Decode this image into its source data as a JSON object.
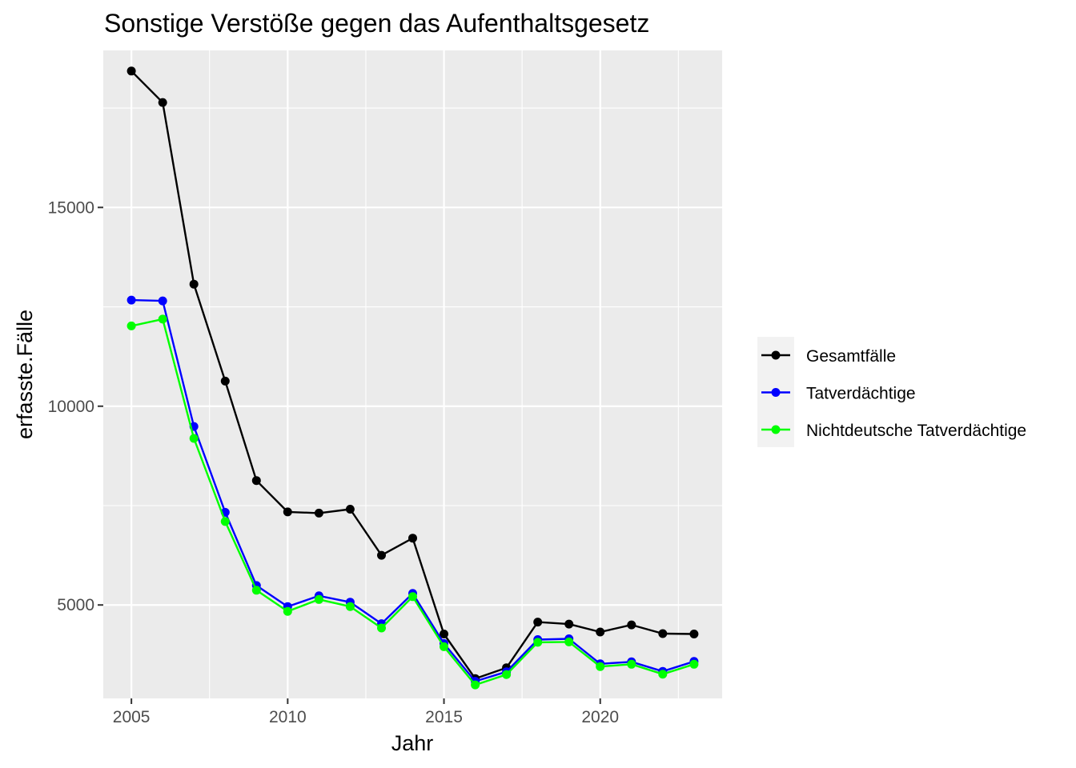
{
  "chart_data": {
    "type": "line",
    "title": "Sonstige Verstöße gegen das Aufenthaltsgesetz",
    "xlabel": "Jahr",
    "ylabel": "erfasste.Fälle",
    "x": [
      2005,
      2006,
      2007,
      2008,
      2009,
      2010,
      2011,
      2012,
      2013,
      2014,
      2015,
      2016,
      2017,
      2018,
      2019,
      2020,
      2021,
      2022,
      2023
    ],
    "xlim": [
      2004.1,
      2023.9
    ],
    "ylim": [
      2650,
      18950
    ],
    "x_ticks": [
      2005,
      2010,
      2015,
      2020
    ],
    "x_tick_labels": [
      "2005",
      "2010",
      "2015",
      "2020"
    ],
    "x_minor_ticks": [
      2007.5,
      2012.5,
      2017.5,
      2022.5
    ],
    "y_ticks": [
      5000,
      10000,
      15000
    ],
    "y_tick_labels": [
      "5000",
      "10000",
      "15000"
    ],
    "y_minor_ticks": [
      2500,
      7500,
      12500,
      17500
    ],
    "grid": true,
    "legend_position": "right",
    "series": [
      {
        "name": "Gesamtfälle",
        "color": "#000000",
        "values": [
          18430,
          17640,
          13070,
          10630,
          8130,
          7340,
          7310,
          7410,
          6250,
          6680,
          4270,
          3150,
          3420,
          4570,
          4520,
          4320,
          4500,
          4280,
          4270
        ]
      },
      {
        "name": "Tatverdächtige",
        "color": "#0000ff",
        "values": [
          12670,
          12650,
          9490,
          7330,
          5490,
          4960,
          5230,
          5070,
          4530,
          5290,
          4030,
          3080,
          3320,
          4130,
          4150,
          3520,
          3570,
          3330,
          3580
        ]
      },
      {
        "name": "Nichtdeutsche Tatverdächtige",
        "color": "#00ff00",
        "values": [
          12020,
          12190,
          9190,
          7100,
          5370,
          4840,
          5140,
          4960,
          4420,
          5210,
          3950,
          2990,
          3250,
          4060,
          4070,
          3450,
          3510,
          3260,
          3510
        ]
      }
    ]
  }
}
